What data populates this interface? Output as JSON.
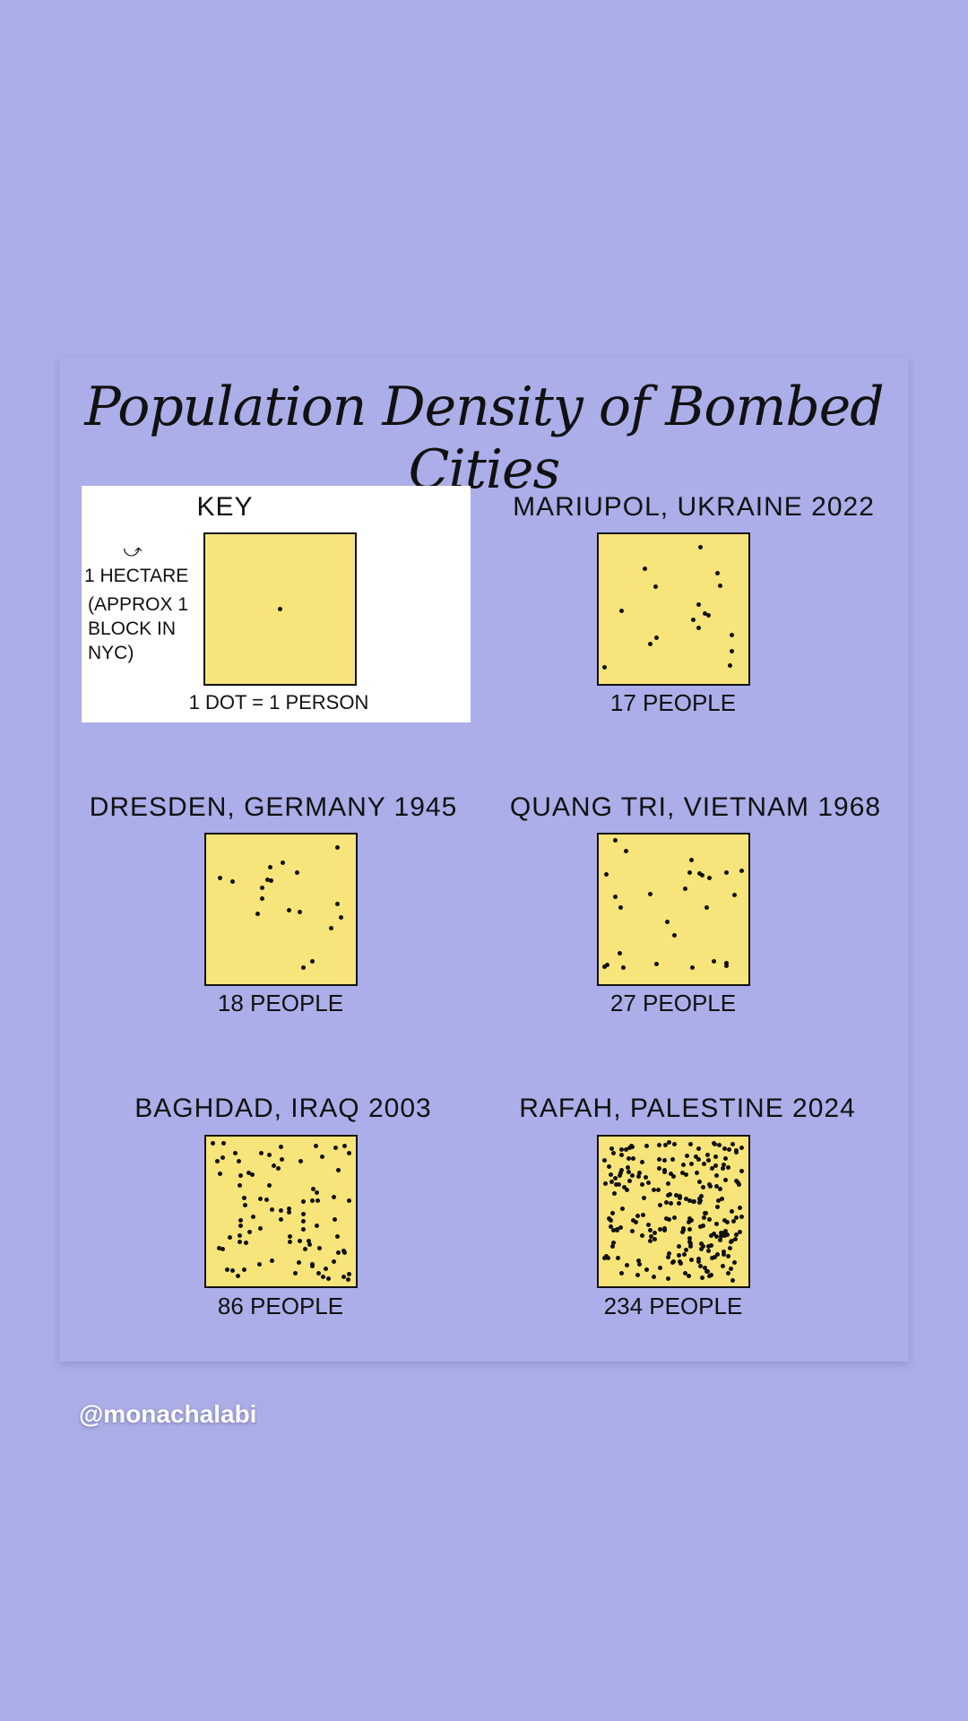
{
  "chart_data": {
    "type": "dot-density",
    "title": "Population Density of Bombed Cities",
    "key": {
      "heading": "KEY",
      "unit_label": "1 HECTARE",
      "unit_note": "(APPROX 1 BLOCK IN NYC)",
      "legend": "1 DOT = 1 PERSON",
      "dots": 1
    },
    "series": [
      {
        "name": "MARIUPOL, UKRAINE 2022",
        "value": 17,
        "label": "17 PEOPLE"
      },
      {
        "name": "DRESDEN, GERMANY 1945",
        "value": 18,
        "label": "18 PEOPLE"
      },
      {
        "name": "QUANG TRI, VIETNAM 1968",
        "value": 27,
        "label": "27 PEOPLE"
      },
      {
        "name": "BAGHDAD, IRAQ 2003",
        "value": 86,
        "label": "86 PEOPLE"
      },
      {
        "name": "RAFAH, PALESTINE 2024",
        "value": 234,
        "label": "234 PEOPLE"
      }
    ],
    "unit": "people per hectare"
  },
  "handle": "@monachalabi",
  "colors": {
    "background": "#abaee6",
    "square": "#f7e47a",
    "dot": "#111111"
  }
}
